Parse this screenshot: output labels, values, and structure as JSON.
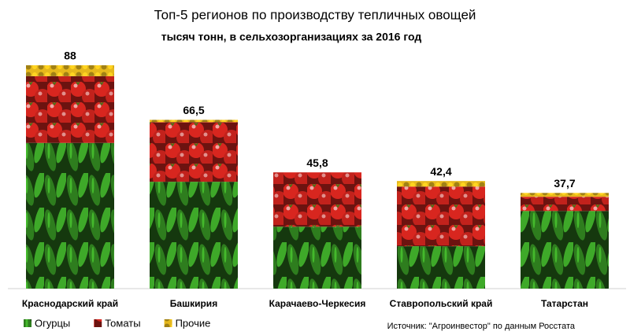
{
  "chart_data": {
    "type": "stacked_bar",
    "title": "Топ-5 регионов по производству тепличных овощей",
    "subtitle": "тысяч тонн, в сельхозорганизациях за 2016 год",
    "source": "Источник: \"Агроинвестор\" по данным Росстата",
    "categories": [
      "Краснодарский край",
      "Башкирия",
      "Карачаево-Черкесия",
      "Ставропольский край",
      "Татарстан"
    ],
    "series": [
      {
        "name": "Огурцы",
        "color": "#2e7d1e",
        "values": [
          57.4,
          42.1,
          24.4,
          16.7,
          30.6
        ]
      },
      {
        "name": "Томаты",
        "color": "#d8261f",
        "values": [
          26.3,
          23.5,
          21.4,
          23.5,
          5.6
        ]
      },
      {
        "name": "Прочие",
        "color": "#e6b81c",
        "values": [
          4.3,
          0.9,
          0,
          2.2,
          1.5
        ]
      }
    ],
    "totals": [
      88,
      66.5,
      45.8,
      42.4,
      37.7
    ],
    "total_labels": [
      "88",
      "66,5",
      "45,8",
      "42,4",
      "37,7"
    ]
  }
}
